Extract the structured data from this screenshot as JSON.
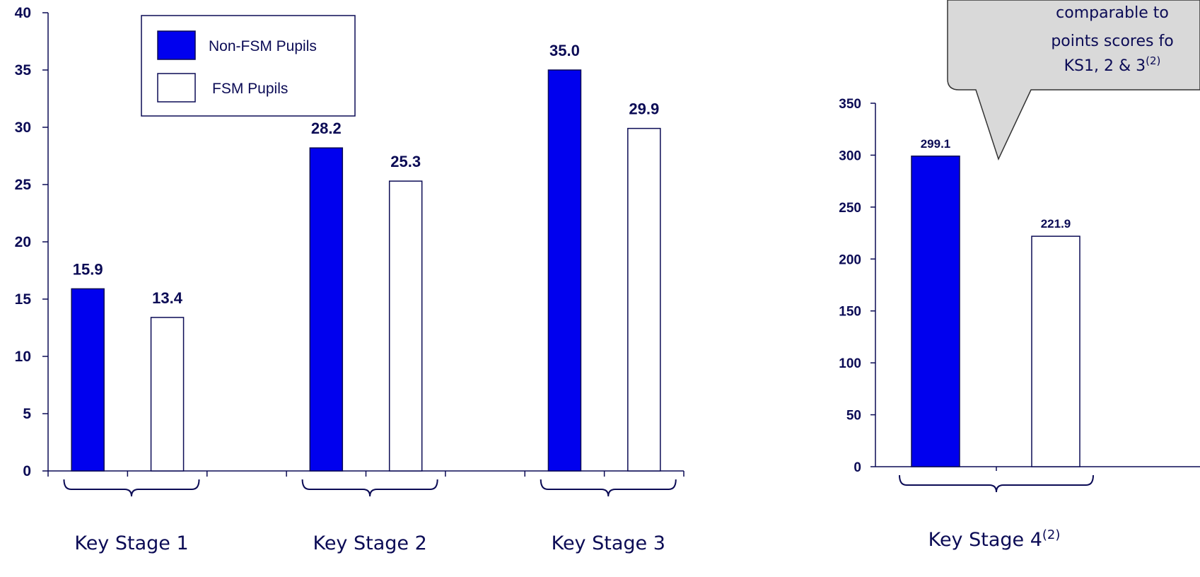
{
  "chart_data": [
    {
      "type": "bar",
      "categories": [
        "Key Stage 1",
        "Key Stage 2",
        "Key Stage 3"
      ],
      "series": [
        {
          "name": "Non-FSM Pupils",
          "values": [
            15.9,
            28.2,
            35.0
          ],
          "color": "#0000ee"
        },
        {
          "name": "FSM Pupils",
          "values": [
            13.4,
            25.3,
            29.9
          ],
          "color": "#ffffff"
        }
      ],
      "value_labels": [
        [
          "15.9",
          "28.2",
          "35.0"
        ],
        [
          "13.4",
          "25.3",
          "29.9"
        ]
      ],
      "ylim": [
        0,
        40
      ],
      "yticks": [
        0,
        5,
        10,
        15,
        20,
        25,
        30,
        35,
        40
      ],
      "legend": {
        "position": "top-left",
        "entries": [
          "Non-FSM Pupils",
          "FSM Pupils"
        ]
      },
      "grid": false
    },
    {
      "type": "bar",
      "categories": [
        "Key Stage 4"
      ],
      "category_superscript": [
        "(2)"
      ],
      "series": [
        {
          "name": "Non-FSM Pupils",
          "values": [
            299.1
          ],
          "color": "#0000ee"
        },
        {
          "name": "FSM Pupils",
          "values": [
            221.9
          ],
          "color": "#ffffff"
        }
      ],
      "value_labels": [
        [
          "299.1"
        ],
        [
          "221.9"
        ]
      ],
      "ylim": [
        0,
        350
      ],
      "yticks": [
        0,
        50,
        100,
        150,
        200,
        250,
        300,
        350
      ],
      "grid": false,
      "callout": {
        "lines": [
          "comparable to",
          "points scores fo",
          "KS1, 2 & 3"
        ],
        "superscript": "(2)"
      }
    }
  ]
}
